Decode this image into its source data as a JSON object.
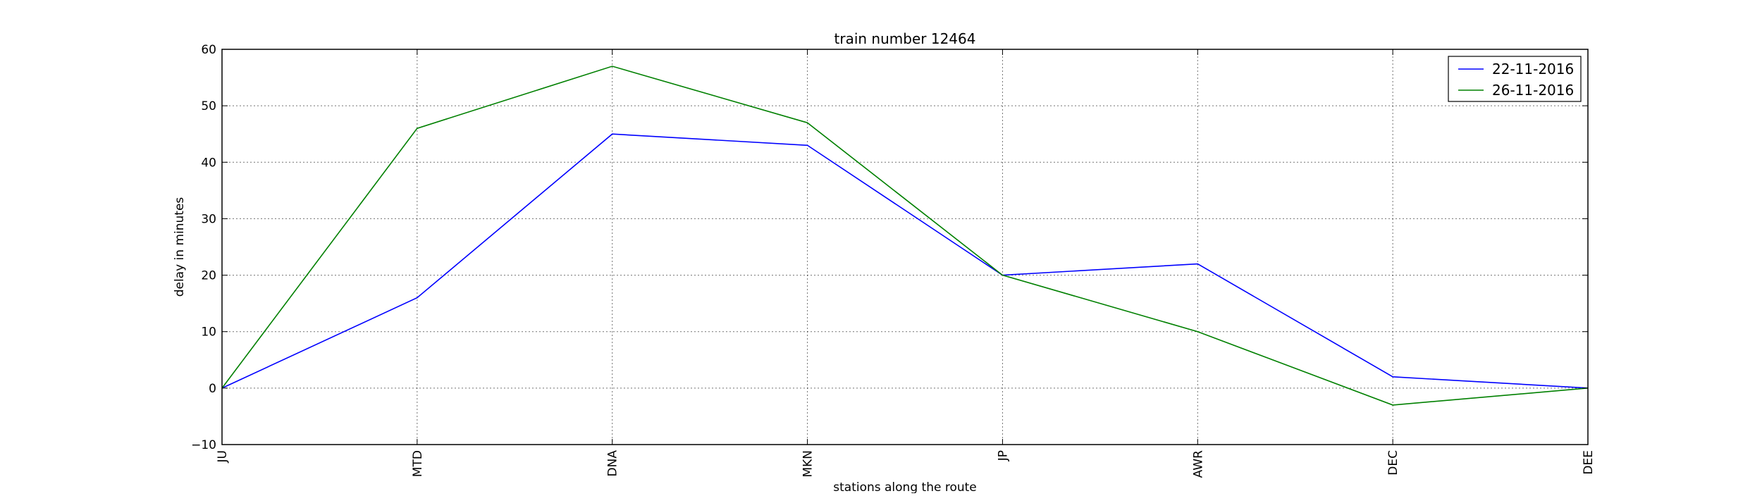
{
  "chart_data": {
    "type": "line",
    "title": "train number 12464",
    "xlabel": "stations along the route",
    "ylabel": "delay in minutes",
    "categories": [
      "JU",
      "MTD",
      "DNA",
      "MKN",
      "JP",
      "AWR",
      "DEC",
      "DEE"
    ],
    "ylim": [
      -10,
      60
    ],
    "yticks": [
      -10,
      0,
      10,
      20,
      30,
      40,
      50,
      60
    ],
    "grid": true,
    "legend_position": "top-right",
    "series": [
      {
        "name": "22-11-2016",
        "color": "#0000ff",
        "values": [
          0,
          16,
          45,
          43,
          20,
          22,
          2,
          0
        ]
      },
      {
        "name": "26-11-2016",
        "color": "#008000",
        "values": [
          0,
          46,
          57,
          47,
          20,
          10,
          -3,
          0
        ]
      }
    ]
  }
}
